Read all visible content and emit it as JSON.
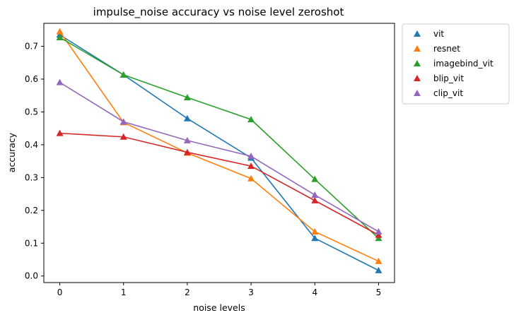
{
  "chart_data": {
    "type": "line",
    "title": "impulse_noise accuracy vs noise level zeroshot",
    "xlabel": "noise levels",
    "ylabel": "accuracy",
    "x": [
      0,
      1,
      2,
      3,
      4,
      5
    ],
    "xticks": [
      "0",
      "1",
      "2",
      "3",
      "4",
      "5"
    ],
    "yticks": [
      "0.0",
      "0.1",
      "0.2",
      "0.3",
      "0.4",
      "0.5",
      "0.6",
      "0.7"
    ],
    "xlim": [
      -0.25,
      5.25
    ],
    "ylim": [
      -0.02,
      0.77
    ],
    "grid": false,
    "legend_position": "outside-right",
    "marker": "triangle",
    "series": [
      {
        "name": "vit",
        "color": "#1f77b4",
        "values": [
          0.735,
          0.613,
          0.48,
          0.36,
          0.115,
          0.017
        ]
      },
      {
        "name": "resnet",
        "color": "#ff7f0e",
        "values": [
          0.745,
          0.468,
          0.375,
          0.297,
          0.135,
          0.045
        ]
      },
      {
        "name": "imagebind_vit",
        "color": "#2ca02c",
        "values": [
          0.727,
          0.613,
          0.544,
          0.477,
          0.295,
          0.115
        ]
      },
      {
        "name": "blip_vit",
        "color": "#d62728",
        "values": [
          0.435,
          0.424,
          0.377,
          0.335,
          0.23,
          0.125
        ]
      },
      {
        "name": "clip_vit",
        "color": "#9467bd",
        "values": [
          0.59,
          0.47,
          0.413,
          0.365,
          0.247,
          0.135
        ]
      }
    ]
  }
}
